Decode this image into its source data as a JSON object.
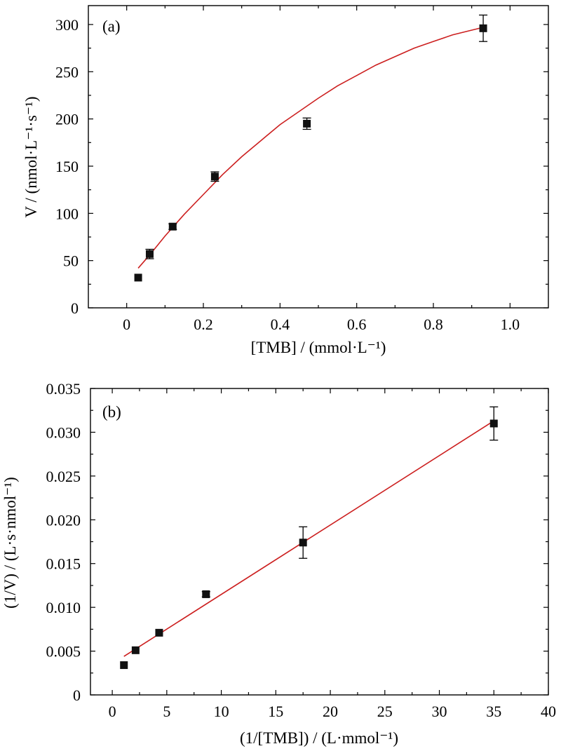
{
  "chart_data": [
    {
      "type": "scatter",
      "panel_label": "(a)",
      "xlabel": "[TMB] / (mmol·L⁻¹)",
      "ylabel": "V / (nmol·L⁻¹·s⁻¹)",
      "xlim": [
        -0.1,
        1.1
      ],
      "ylim": [
        0,
        320
      ],
      "x_ticks": [
        "0",
        "0.2",
        "0.4",
        "0.6",
        "0.8",
        "1.0"
      ],
      "y_ticks": [
        "0",
        "50",
        "100",
        "150",
        "200",
        "250",
        "300"
      ],
      "series": [
        {
          "x": [
            0.03,
            0.06,
            0.12,
            0.23,
            0.47,
            0.93
          ],
          "y": [
            32,
            57,
            86,
            139,
            195,
            296
          ],
          "error": [
            0,
            5,
            3,
            5,
            6,
            14
          ],
          "color": "#111111"
        }
      ],
      "fit_line": {
        "color": "#cc1f1f",
        "x": [
          0.03,
          0.06,
          0.1,
          0.15,
          0.2,
          0.25,
          0.3,
          0.35,
          0.4,
          0.45,
          0.5,
          0.55,
          0.6,
          0.65,
          0.7,
          0.75,
          0.8,
          0.85,
          0.9,
          0.93
        ],
        "y": [
          42,
          56,
          76,
          99,
          120,
          141,
          160,
          177,
          194,
          208,
          222,
          235,
          246,
          257,
          266,
          275,
          282,
          289,
          294,
          297
        ]
      },
      "grid": false
    },
    {
      "type": "scatter",
      "panel_label": "(b)",
      "xlabel": "(1/[TMB]) / (L·mmol⁻¹)",
      "ylabel": "(1/V) / (L·s·nmol⁻¹)",
      "xlim": [
        -2,
        40
      ],
      "ylim": [
        0,
        0.035
      ],
      "x_ticks": [
        "0",
        "5",
        "10",
        "15",
        "20",
        "25",
        "30",
        "35",
        "40"
      ],
      "y_ticks": [
        "0",
        "0.005",
        "0.010",
        "0.015",
        "0.020",
        "0.025",
        "0.030",
        "0.035"
      ],
      "series": [
        {
          "x": [
            1.07,
            2.14,
            4.3,
            8.6,
            17.5,
            35.0
          ],
          "y": [
            0.0034,
            0.0051,
            0.0071,
            0.0115,
            0.0174,
            0.031
          ],
          "error": [
            0,
            0,
            0,
            0.0003,
            0.0018,
            0.0019
          ],
          "color": "#111111"
        }
      ],
      "fit_line": {
        "color": "#cc1f1f",
        "x": [
          1.07,
          35.0
        ],
        "y": [
          0.0044,
          0.0313
        ]
      },
      "grid": false
    }
  ]
}
